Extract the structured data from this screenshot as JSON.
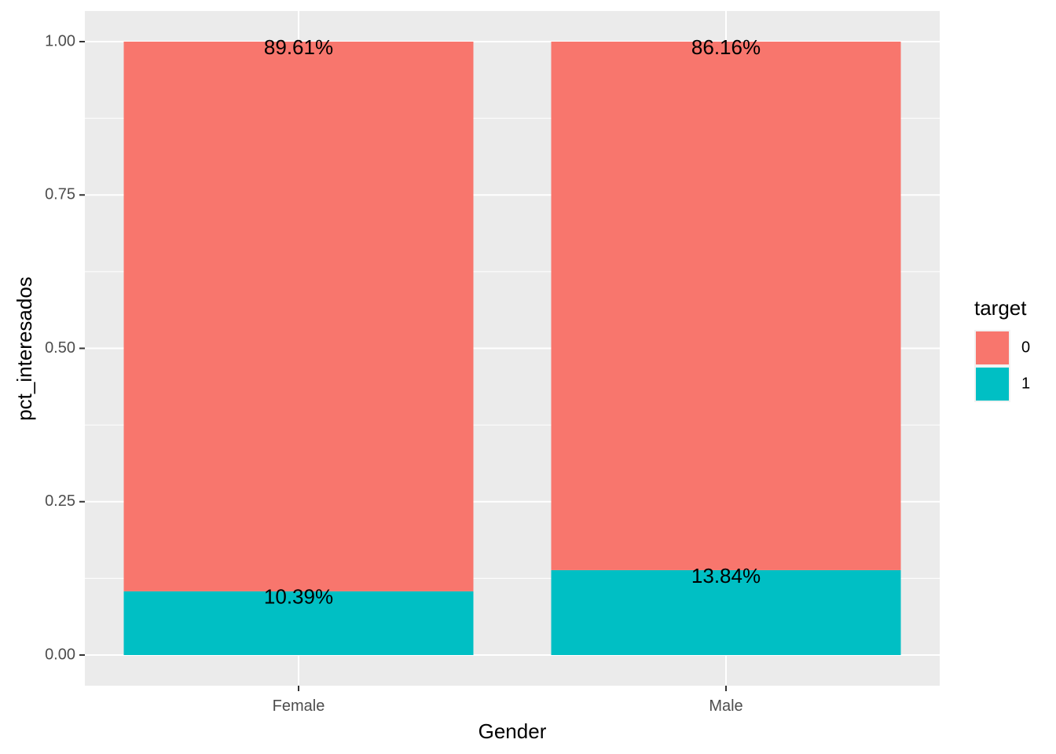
{
  "chart_data": {
    "type": "bar",
    "stacked": true,
    "categories": [
      "Female",
      "Male"
    ],
    "series": [
      {
        "name": "1",
        "values": [
          0.1039,
          0.1384
        ],
        "labels": [
          "10.39%",
          "13.84%"
        ],
        "color": "#00BFC4"
      },
      {
        "name": "0",
        "values": [
          0.8961,
          0.8616
        ],
        "labels": [
          "89.61%",
          "86.16%"
        ],
        "color": "#F8766D"
      }
    ],
    "xlabel": "Gender",
    "ylabel": "pct_interesados",
    "ylim": [
      0,
      1
    ],
    "yticks": [
      "0.00",
      "0.25",
      "0.50",
      "0.75",
      "1.00"
    ],
    "grid": true,
    "panel_background": "#EBEBEB",
    "legend": {
      "title": "target",
      "position": "right",
      "entries": [
        {
          "label": "0",
          "color": "#F8766D"
        },
        {
          "label": "1",
          "color": "#00BFC4"
        }
      ]
    }
  }
}
